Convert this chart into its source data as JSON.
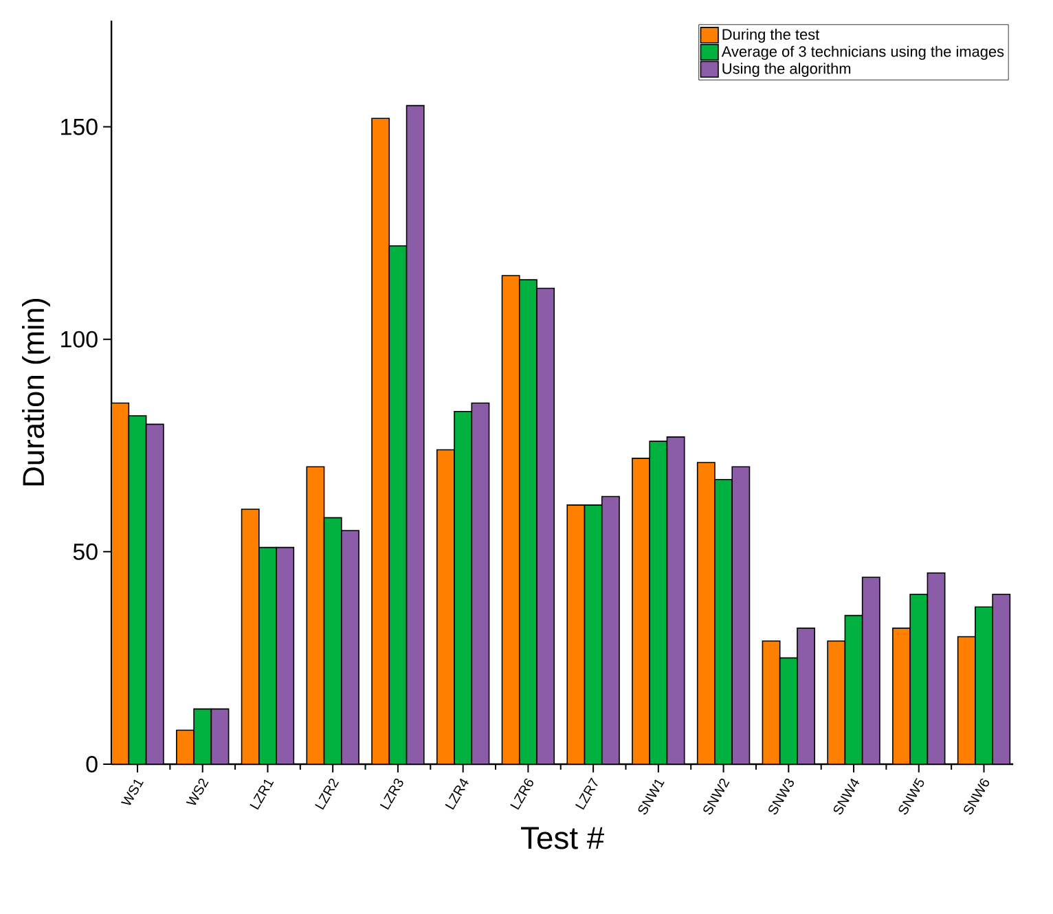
{
  "chart_data": {
    "type": "bar",
    "xlabel": "Test #",
    "ylabel": "Duration (min)",
    "categories": [
      "WS1",
      "WS2",
      "LZR1",
      "LZR2",
      "LZR3",
      "LZR4",
      "LZR6",
      "LZR7",
      "SNW1",
      "SNW2",
      "SNW3",
      "SNW4",
      "SNW5",
      "SNW6"
    ],
    "series": [
      {
        "name": "During the test",
        "color": "#ff8000",
        "values": [
          85,
          8,
          60,
          70,
          152,
          74,
          115,
          61,
          72,
          71,
          29,
          29,
          32,
          30
        ]
      },
      {
        "name": "Average of 3 technicians using the images",
        "color": "#00b140",
        "values": [
          82,
          13,
          51,
          58,
          122,
          83,
          114,
          61,
          76,
          67,
          25,
          35,
          40,
          37
        ]
      },
      {
        "name": "Using the algorithm",
        "color": "#8b5ca8",
        "values": [
          80,
          13,
          51,
          55,
          155,
          85,
          112,
          63,
          77,
          70,
          32,
          44,
          45,
          40
        ]
      }
    ],
    "ylim": [
      0,
      175
    ],
    "yticks": [
      0,
      50,
      100,
      150
    ],
    "grid": false,
    "legend": "top right"
  }
}
